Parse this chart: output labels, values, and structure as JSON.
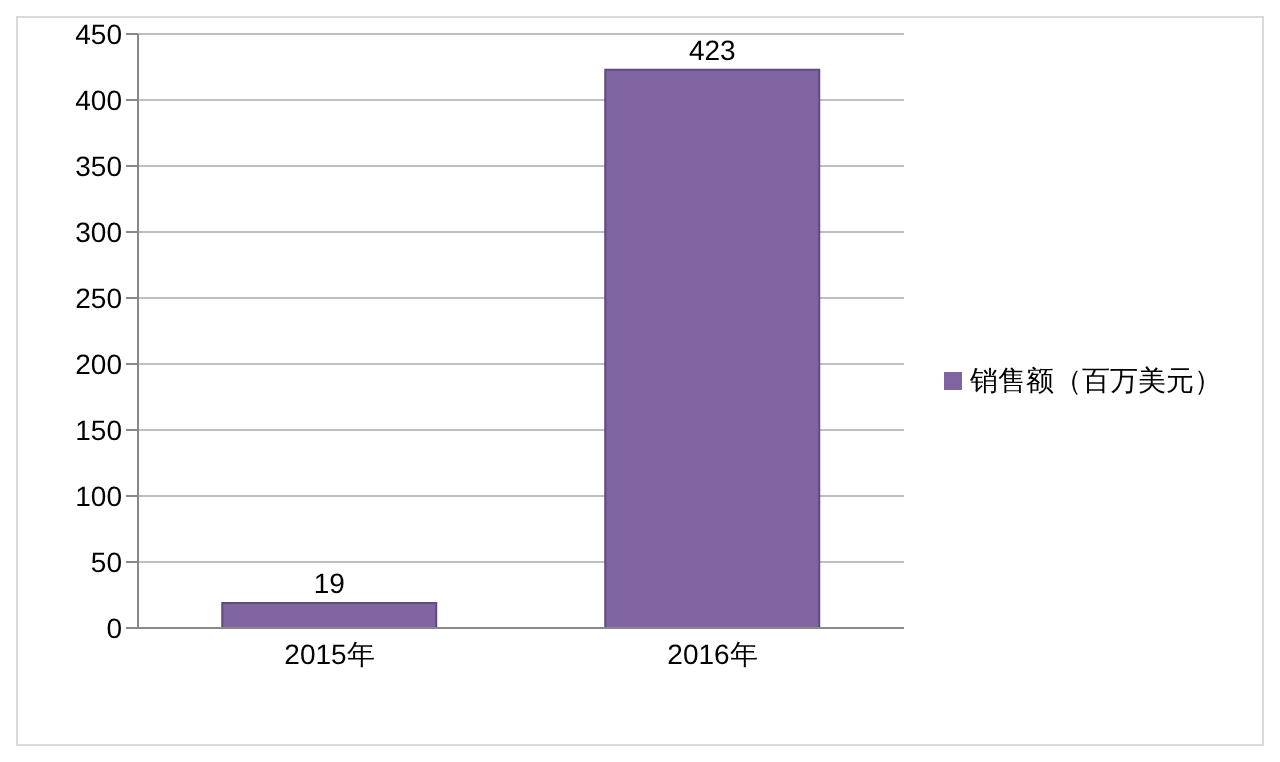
{
  "chart_data": {
    "type": "bar",
    "categories": [
      "2015年",
      "2016年"
    ],
    "series": [
      {
        "name": "销售额（百万美元）",
        "color": "#8064a2",
        "values": [
          19,
          423
        ]
      }
    ],
    "ylim": [
      0,
      450
    ],
    "yticks": [
      0,
      50,
      100,
      150,
      200,
      250,
      300,
      350,
      400,
      450
    ],
    "grid": "y",
    "legend": "right",
    "data_labels": true
  }
}
